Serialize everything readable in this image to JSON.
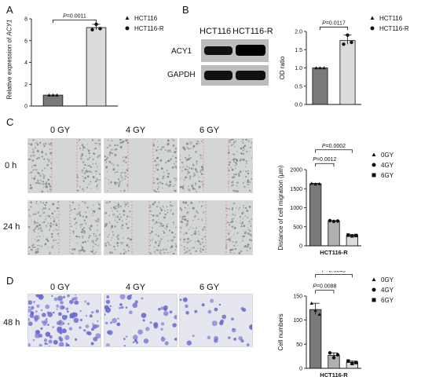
{
  "panels": {
    "A": "A",
    "B": "B",
    "C": "C",
    "D": "D"
  },
  "panel_a": {
    "ylabel_part1": "Relative expression of ",
    "ylabel_part2": "ACY1",
    "pvalue": "=0.0011",
    "p": "P"
  },
  "panel_b": {
    "blot_cols": [
      "HCT116",
      "HCT116-R"
    ],
    "blot_rows": [
      "ACY1",
      "GAPDH"
    ],
    "pvalue": "=0.0117",
    "p": "P"
  },
  "panel_c": {
    "cols": [
      "0 GY",
      "4 GY",
      "6 GY"
    ],
    "rows": [
      "0 h",
      "24 h"
    ],
    "colors": {
      "scratch_bg": "#cfcfcf",
      "scratch_edge": "#e06a6a"
    }
  },
  "panel_d": {
    "cols": [
      "0 GY",
      "4 GY",
      "6 GY"
    ],
    "rows": [
      "48 h"
    ],
    "colors": {
      "cell": "#6a6ad0",
      "bg": "#e6e6ee"
    }
  },
  "chart_data": [
    {
      "type": "bar",
      "categories": [
        "HCT116",
        "HCT116-R"
      ],
      "values": [
        1.0,
        7.2
      ],
      "points": [
        [
          1.0,
          1.0,
          1.0
        ],
        [
          7.0,
          7.5,
          7.1
        ]
      ],
      "ylim": [
        0,
        8
      ],
      "ylabel": "Relative expression of ACY1",
      "legend": [
        "HCT116",
        "HCT116-R"
      ],
      "annotation": "P=0.0011",
      "colors": [
        "#7a7a7a",
        "#dcdcdc"
      ]
    },
    {
      "type": "bar",
      "categories": [
        "HCT116",
        "HCT116-R"
      ],
      "values": [
        1.0,
        1.75
      ],
      "points": [
        [
          1.0,
          1.0,
          1.0
        ],
        [
          1.65,
          1.9,
          1.7
        ]
      ],
      "ylim": [
        0,
        2.0
      ],
      "yticks": [
        "0.0",
        "0.5",
        "1.0",
        "1.5",
        "2.0"
      ],
      "ylabel": "OD ratio",
      "legend": [
        "HCT116",
        "HCT116-R"
      ],
      "annotation": "P=0.0117",
      "colors": [
        "#7a7a7a",
        "#dcdcdc"
      ]
    },
    {
      "type": "bar",
      "categories": [
        "0GY",
        "4GY",
        "6GY"
      ],
      "values": [
        1630,
        650,
        270
      ],
      "points": [
        [
          1640,
          1620,
          1630
        ],
        [
          660,
          640,
          650
        ],
        [
          280,
          260,
          270
        ]
      ],
      "ylim": [
        0,
        2000
      ],
      "yticks": [
        "0",
        "500",
        "1000",
        "1500",
        "2000"
      ],
      "ylabel": "Distance of cell migration (μm)",
      "xlabel": "HCT116-R",
      "legend": [
        "0GY",
        "4GY",
        "6GY"
      ],
      "annotations": [
        "P=0.0012",
        "P=0.0002"
      ],
      "colors": [
        "#7a7a7a",
        "#b0b0b0",
        "#dcdcdc"
      ]
    },
    {
      "type": "bar",
      "categories": [
        "0GY",
        "4GY",
        "6GY"
      ],
      "values": [
        122,
        27,
        12
      ],
      "points": [
        [
          135,
          120,
          112
        ],
        [
          32,
          22,
          28
        ],
        [
          15,
          10,
          12
        ]
      ],
      "ylim": [
        0,
        150
      ],
      "yticks": [
        "0",
        "50",
        "100",
        "150"
      ],
      "ylabel": "Cell numbers",
      "xlabel": "HCT116-R",
      "legend": [
        "0GY",
        "4GY",
        "6GY"
      ],
      "annotations": [
        "P=0.0088",
        "P=0.0045"
      ],
      "colors": [
        "#7a7a7a",
        "#b0b0b0",
        "#dcdcdc"
      ]
    }
  ]
}
